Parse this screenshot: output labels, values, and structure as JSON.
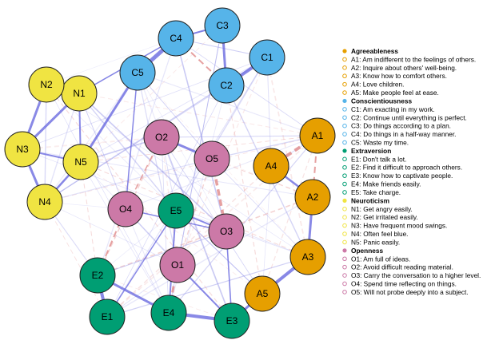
{
  "nodes": [
    {
      "label": "A1"
    },
    {
      "label": "A2"
    },
    {
      "label": "A3"
    },
    {
      "label": "A4"
    },
    {
      "label": "A5"
    },
    {
      "label": "C1"
    },
    {
      "label": "C2"
    },
    {
      "label": "C3"
    },
    {
      "label": "C4"
    },
    {
      "label": "C5"
    },
    {
      "label": "E1"
    },
    {
      "label": "E2"
    },
    {
      "label": "E3"
    },
    {
      "label": "E4"
    },
    {
      "label": "E5"
    },
    {
      "label": "N1"
    },
    {
      "label": "N2"
    },
    {
      "label": "N3"
    },
    {
      "label": "N4"
    },
    {
      "label": "N5"
    },
    {
      "label": "O1"
    },
    {
      "label": "O2"
    },
    {
      "label": "O3"
    },
    {
      "label": "O4"
    },
    {
      "label": "O5"
    }
  ],
  "legend": [
    {
      "name": "Agreeableness",
      "color": "#E69F00",
      "items": [
        "A1: Am indifferent to the feelings of others.",
        "A2: Inquire about others' well-being.",
        "A3: Know how to comfort others.",
        "A4: Love children.",
        "A5: Make people feel at ease."
      ]
    },
    {
      "name": "Conscientiousness",
      "color": "#56B4E9",
      "items": [
        "C1: Am exacting in my work.",
        "C2: Continue until everything is perfect.",
        "C3: Do things according to a plan.",
        "C4: Do things in a half-way manner.",
        "C5: Waste my time."
      ]
    },
    {
      "name": "Extraversion",
      "color": "#009E73",
      "items": [
        "E1: Don't talk a lot.",
        "E2: Find it difficult to approach others.",
        "E3: Know how to captivate people.",
        "E4: Make friends easily.",
        "E5: Take charge."
      ]
    },
    {
      "name": "Neuroticism",
      "color": "#F0E442",
      "items": [
        "N1: Get angry easily.",
        "N2: Get irritated easily.",
        "N3: Have frequent mood swings.",
        "N4: Often feel blue.",
        "N5: Panic easily."
      ]
    },
    {
      "name": "Openness",
      "color": "#CC79A7",
      "items": [
        "O1: Am full of ideas.",
        "O2: Avoid difficult reading material.",
        "O3: Carry the conversation to a higher level.",
        "O4: Spend time reflecting on things.",
        "O5: Will not probe deeply into a subject."
      ]
    }
  ]
}
